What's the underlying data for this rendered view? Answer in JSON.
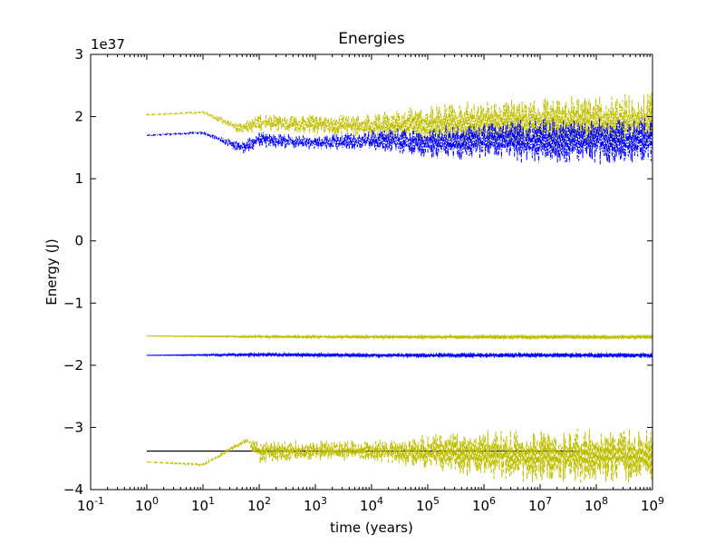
{
  "chart_data": {
    "type": "line",
    "title": "Energies",
    "xlabel": "time (years)",
    "ylabel": "Energy (J)",
    "y_multiplier_label": "1e37",
    "x_scale": "log",
    "xlim": [
      0.1,
      1000000000
    ],
    "ylim": [
      -4,
      3
    ],
    "x_tick_labels": [
      {
        "base": "10",
        "exp": "-1",
        "value": 0.1
      },
      {
        "base": "10",
        "exp": "0",
        "value": 1
      },
      {
        "base": "10",
        "exp": "1",
        "value": 10
      },
      {
        "base": "10",
        "exp": "2",
        "value": 100
      },
      {
        "base": "10",
        "exp": "3",
        "value": 1000
      },
      {
        "base": "10",
        "exp": "4",
        "value": 10000
      },
      {
        "base": "10",
        "exp": "5",
        "value": 100000
      },
      {
        "base": "10",
        "exp": "6",
        "value": 1000000
      },
      {
        "base": "10",
        "exp": "7",
        "value": 10000000
      },
      {
        "base": "10",
        "exp": "8",
        "value": 100000000
      },
      {
        "base": "10",
        "exp": "9",
        "value": 1000000000
      }
    ],
    "y_tick_labels": [
      {
        "label": "3",
        "value": 3
      },
      {
        "label": "2",
        "value": 2
      },
      {
        "label": "1",
        "value": 1
      },
      {
        "label": "0",
        "value": 0
      },
      {
        "label": "−1",
        "value": -1
      },
      {
        "label": "−2",
        "value": -2
      },
      {
        "label": "−3",
        "value": -3
      },
      {
        "label": "−4",
        "value": -4
      }
    ],
    "grid": false,
    "legend": "none",
    "series": [
      {
        "color": "#bfbf00",
        "style": "dash-dot",
        "band": [
          {
            "x": 1,
            "low": 2.02,
            "high": 2.04
          },
          {
            "x": 10,
            "low": 2.05,
            "high": 2.08
          },
          {
            "x": 50,
            "low": 1.7,
            "high": 1.9
          },
          {
            "x": 100,
            "low": 1.75,
            "high": 2.05
          },
          {
            "x": 1000,
            "low": 1.7,
            "high": 2.05
          },
          {
            "x": 10000,
            "low": 1.65,
            "high": 2.05
          },
          {
            "x": 100000,
            "low": 1.55,
            "high": 2.2
          },
          {
            "x": 1000000,
            "low": 1.5,
            "high": 2.3
          },
          {
            "x": 10000000,
            "low": 1.45,
            "high": 2.35
          },
          {
            "x": 100000000,
            "low": 1.4,
            "high": 2.38
          },
          {
            "x": 1000000000,
            "low": 1.4,
            "high": 2.4
          }
        ]
      },
      {
        "color": "#0000ff",
        "style": "dash-dot",
        "band": [
          {
            "x": 1,
            "low": 1.69,
            "high": 1.71
          },
          {
            "x": 10,
            "low": 1.72,
            "high": 1.76
          },
          {
            "x": 50,
            "low": 1.38,
            "high": 1.6
          },
          {
            "x": 100,
            "low": 1.5,
            "high": 1.75
          },
          {
            "x": 1000,
            "low": 1.45,
            "high": 1.7
          },
          {
            "x": 10000,
            "low": 1.45,
            "high": 1.8
          },
          {
            "x": 100000,
            "low": 1.3,
            "high": 1.85
          },
          {
            "x": 1000000,
            "low": 1.25,
            "high": 1.95
          },
          {
            "x": 10000000,
            "low": 1.25,
            "high": 2.0
          },
          {
            "x": 100000000,
            "low": 1.22,
            "high": 2.0
          },
          {
            "x": 1000000000,
            "low": 1.22,
            "high": 2.0
          }
        ]
      },
      {
        "color": "#bfbf00",
        "style": "solid",
        "band": [
          {
            "x": 1,
            "low": -1.53,
            "high": -1.53
          },
          {
            "x": 100,
            "low": -1.56,
            "high": -1.52
          },
          {
            "x": 10000,
            "low": -1.57,
            "high": -1.52
          },
          {
            "x": 1000000,
            "low": -1.58,
            "high": -1.51
          },
          {
            "x": 1000000000,
            "low": -1.58,
            "high": -1.51
          }
        ]
      },
      {
        "color": "#0000ff",
        "style": "solid",
        "band": [
          {
            "x": 1,
            "low": -1.84,
            "high": -1.84
          },
          {
            "x": 100,
            "low": -1.86,
            "high": -1.8
          },
          {
            "x": 10000,
            "low": -1.87,
            "high": -1.81
          },
          {
            "x": 1000000,
            "low": -1.88,
            "high": -1.8
          },
          {
            "x": 1000000000,
            "low": -1.88,
            "high": -1.8
          }
        ]
      },
      {
        "color": "#000000",
        "style": "solid",
        "points": [
          [
            1,
            -3.38
          ],
          [
            50000000,
            -3.38
          ]
        ]
      },
      {
        "color": "#bfbf00",
        "style": "dashed",
        "band": [
          {
            "x": 1,
            "low": -3.56,
            "high": -3.55
          },
          {
            "x": 10,
            "low": -3.62,
            "high": -3.58
          },
          {
            "x": 60,
            "low": -3.25,
            "high": -3.15
          },
          {
            "x": 100,
            "low": -3.6,
            "high": -3.2
          },
          {
            "x": 1000,
            "low": -3.55,
            "high": -3.2
          },
          {
            "x": 10000,
            "low": -3.55,
            "high": -3.2
          },
          {
            "x": 100000,
            "low": -3.7,
            "high": -3.1
          },
          {
            "x": 1000000,
            "low": -3.85,
            "high": -3.02
          },
          {
            "x": 10000000,
            "low": -3.9,
            "high": -3.0
          },
          {
            "x": 1000000000,
            "low": -3.9,
            "high": -3.0
          }
        ]
      }
    ]
  }
}
